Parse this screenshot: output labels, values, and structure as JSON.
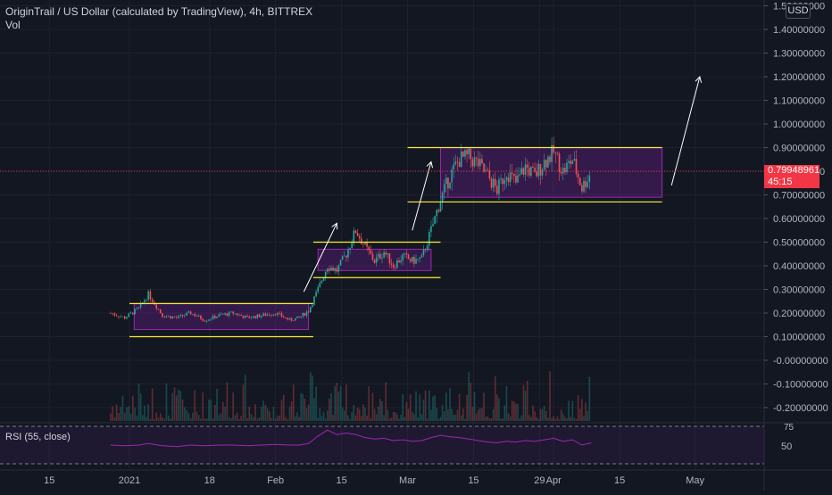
{
  "legend": {
    "symbol_line": "OriginTrail / US Dollar (calculated by TradingView), 4h, BITTREX",
    "volume_label": "Vol"
  },
  "currency_badge": "USD",
  "last_price": {
    "value": "0.79948961",
    "countdown": "45:15",
    "color": "#f23645"
  },
  "rsi": {
    "label": "RSI (55, close)",
    "levels": [
      "75",
      "50"
    ]
  },
  "colors": {
    "background": "#131722",
    "up_candle": "#26a69a",
    "down_candle": "#ef5350",
    "range_box_fill": "#7b1fa2",
    "range_box_border": "#9c27b0",
    "support_line": "#ffeb3b",
    "arrow": "#ffffff",
    "rsi_line": "#9c27b0",
    "grid": "#1e222d",
    "axis_text": "#b2b5be"
  },
  "chart_data": {
    "type": "line",
    "title": "OriginTrail / US Dollar (calculated by TradingView), 4h, BITTREX",
    "xlabel": "",
    "ylabel": "",
    "ylim": [
      -0.24,
      1.5
    ],
    "x_axis_ticks": [
      "15",
      "2021",
      "18",
      "Feb",
      "15",
      "Mar",
      "15",
      "29",
      "Apr",
      "15",
      "May"
    ],
    "y_axis_ticks": [
      "1.50000000",
      "1.40000000",
      "1.30000000",
      "1.20000000",
      "1.10000000",
      "1.00000000",
      "0.90000000",
      "0.80000000",
      "0.70000000",
      "0.60000000",
      "0.50000000",
      "0.40000000",
      "0.30000000",
      "0.20000000",
      "0.10000000",
      "-0.00000000",
      "-0.10000000",
      "-0.20000000"
    ],
    "grid": true,
    "series": [
      {
        "name": "OriginTrail / US Dollar",
        "x": [
          "Dec 28",
          "Dec 31",
          "Jan 3",
          "Jan 5",
          "Jan 8",
          "Jan 11",
          "Jan 14",
          "Jan 17",
          "Jan 20",
          "Jan 23",
          "Jan 26",
          "Jan 29",
          "Feb 1",
          "Feb 4",
          "Feb 6",
          "Feb 8",
          "Feb 10",
          "Feb 12",
          "Feb 14",
          "Feb 16",
          "Feb 18",
          "Feb 20",
          "Feb 22",
          "Feb 24",
          "Feb 26",
          "Feb 28",
          "Mar 2",
          "Mar 4",
          "Mar 6",
          "Mar 8",
          "Mar 10",
          "Mar 12",
          "Mar 14",
          "Mar 16",
          "Mar 18",
          "Mar 20",
          "Mar 22",
          "Mar 24",
          "Mar 26",
          "Mar 28",
          "Mar 30",
          "Apr 1",
          "Apr 3",
          "Apr 5",
          "Apr 7",
          "Apr 9"
        ],
        "y": [
          0.2,
          0.18,
          0.22,
          0.28,
          0.19,
          0.18,
          0.2,
          0.17,
          0.19,
          0.2,
          0.18,
          0.19,
          0.2,
          0.17,
          0.18,
          0.21,
          0.3,
          0.4,
          0.38,
          0.45,
          0.55,
          0.48,
          0.42,
          0.46,
          0.4,
          0.44,
          0.42,
          0.43,
          0.55,
          0.68,
          0.78,
          0.85,
          0.86,
          0.83,
          0.78,
          0.72,
          0.8,
          0.75,
          0.82,
          0.78,
          0.84,
          0.88,
          0.8,
          0.85,
          0.73,
          0.8
        ]
      }
    ],
    "annotations": {
      "range_boxes": [
        {
          "from": "Jan 2",
          "to": "Feb 8",
          "low": 0.13,
          "high": 0.24
        },
        {
          "from": "Feb 10",
          "to": "Mar 6",
          "low": 0.38,
          "high": 0.47
        },
        {
          "from": "Mar 8",
          "to": "Apr 24",
          "low": 0.69,
          "high": 0.9
        }
      ],
      "support_lines": [
        {
          "from": "Jan 1",
          "to": "Feb 9",
          "value": 0.24
        },
        {
          "from": "Jan 1",
          "to": "Feb 9",
          "value": 0.1
        },
        {
          "from": "Feb 9",
          "to": "Mar 8",
          "value": 0.5
        },
        {
          "from": "Feb 9",
          "to": "Mar 8",
          "value": 0.35
        },
        {
          "from": "Mar 1",
          "to": "Apr 24",
          "value": 0.9
        },
        {
          "from": "Mar 1",
          "to": "Apr 24",
          "value": 0.67
        }
      ],
      "arrows": [
        {
          "from_x": "Feb 7",
          "from_y": 0.29,
          "to_x": "Feb 14",
          "to_y": 0.58
        },
        {
          "from_x": "Mar 2",
          "from_y": 0.55,
          "to_x": "Mar 6",
          "to_y": 0.84
        },
        {
          "from_x": "Apr 26",
          "from_y": 0.74,
          "to_x": "May 2",
          "to_y": 1.2
        }
      ]
    },
    "rsi": {
      "name": "RSI (55, close)",
      "ylim": [
        25,
        75
      ],
      "levels": [
        75,
        50
      ],
      "values": [
        50,
        49,
        50,
        52,
        49,
        48,
        50,
        49,
        50,
        50,
        49,
        50,
        51,
        50,
        50,
        52,
        62,
        70,
        64,
        66,
        64,
        60,
        58,
        59,
        56,
        57,
        55,
        56,
        60,
        63,
        61,
        60,
        58,
        56,
        54,
        53,
        55,
        54,
        56,
        55,
        57,
        59,
        55,
        57,
        50,
        53
      ]
    }
  }
}
